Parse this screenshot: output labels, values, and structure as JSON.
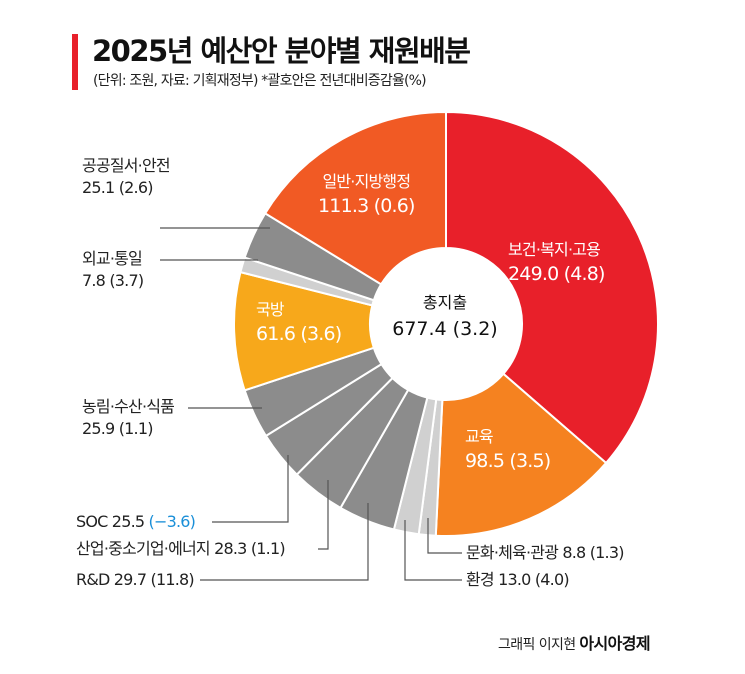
{
  "header": {
    "title": "2025년 예산안 분야별 재원배분",
    "subtitle": "(단위: 조원, 자료: 기획재정부)  *괄호안은 전년대비증감율(%)"
  },
  "chart_data": {
    "type": "pie",
    "donut": true,
    "title": "2025년 예산안 분야별 재원배분",
    "center_label": "총지출",
    "center_value": "677.4 (3.2)",
    "total": 677.4,
    "total_change": 3.2,
    "slices": [
      {
        "label": "보건·복지·고용",
        "value": 249.0,
        "change": 4.8,
        "color": "#e8202a"
      },
      {
        "label": "교육",
        "value": 98.5,
        "change": 3.5,
        "color": "#f58220"
      },
      {
        "label": "문화·체육·관광",
        "value": 8.8,
        "change": 1.3,
        "color": "#d0d0d0"
      },
      {
        "label": "환경",
        "value": 13.0,
        "change": 4.0,
        "color": "#d0d0d0"
      },
      {
        "label": "R&D",
        "value": 29.7,
        "change": 11.8,
        "color": "#8c8c8c"
      },
      {
        "label": "산업·중소기업·에너지",
        "value": 28.3,
        "change": 1.1,
        "color": "#8c8c8c"
      },
      {
        "label": "SOC",
        "value": 25.5,
        "change": -3.6,
        "color": "#8c8c8c"
      },
      {
        "label": "농림·수산·식품",
        "value": 25.9,
        "change": 1.1,
        "color": "#8c8c8c"
      },
      {
        "label": "국방",
        "value": 61.6,
        "change": 3.6,
        "color": "#f7a81b"
      },
      {
        "label": "외교·통일",
        "value": 7.8,
        "change": 3.7,
        "color": "#d0d0d0"
      },
      {
        "label": "공공질서·안전",
        "value": 25.1,
        "change": 2.6,
        "color": "#8c8c8c"
      },
      {
        "label": "일반·지방행정",
        "value": 111.3,
        "change": 0.6,
        "color": "#f15a24"
      }
    ],
    "negative_color": "#1a8fd8"
  },
  "labels": {
    "s0": {
      "name": "보건·복지·고용",
      "val": "249.0 (4.8)"
    },
    "s1": {
      "name": "교육",
      "val": "98.5 (3.5)"
    },
    "s2": "문화·체육·관광  8.8 (1.3)",
    "s3": "환경  13.0 (4.0)",
    "s4": "R&D  29.7 (11.8)",
    "s5": "산업·중소기업·에너지  28.3 (1.1)",
    "s6": {
      "name": "SOC  25.5 ",
      "change": "(−3.6)"
    },
    "s7": {
      "name": "농림·수산·식품",
      "val": "25.9 (1.1)"
    },
    "s8": {
      "name": "국방",
      "val": "61.6 (3.6)"
    },
    "s9": {
      "name": "외교·통일",
      "val": "7.8 (3.7)"
    },
    "s10": {
      "name": "공공질서·안전",
      "val": "25.1 (2.6)"
    },
    "s11": {
      "name": "일반·지방행정",
      "val": "111.3 (0.6)"
    }
  },
  "credit": {
    "author": "그래픽 이지현",
    "publisher": "아시아경제"
  }
}
